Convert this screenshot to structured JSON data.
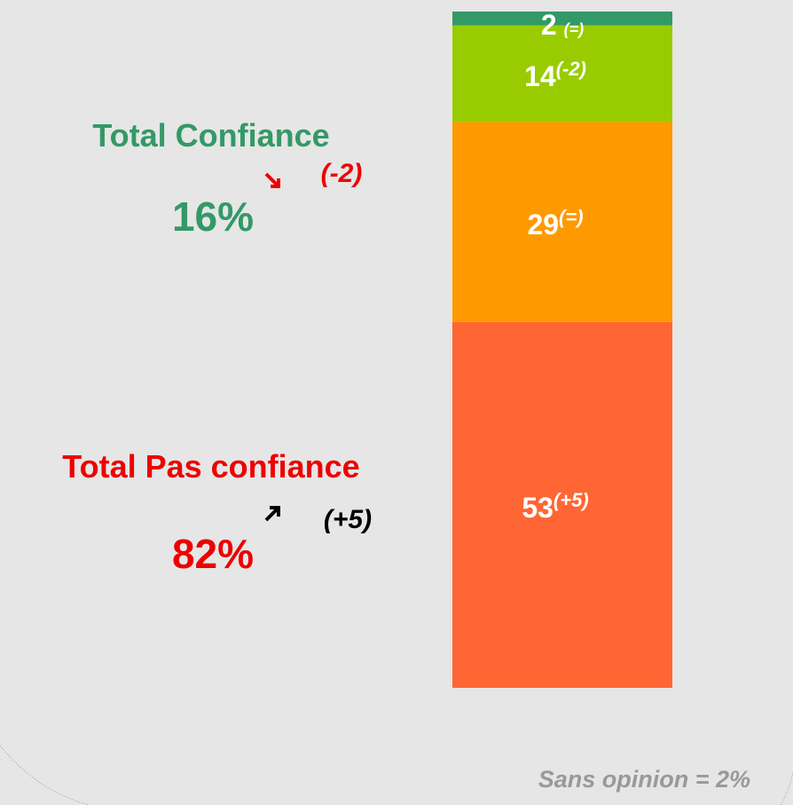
{
  "chart_data": {
    "type": "stacked-bar",
    "series": [
      {
        "color": "#ff6633",
        "values": [
          53
        ],
        "annotation": "(+5)"
      },
      {
        "color": "#ff9900",
        "values": [
          29
        ],
        "annotation": "(=)"
      },
      {
        "color": "#99cc00",
        "values": [
          14
        ],
        "annotation": "(-2)"
      },
      {
        "color": "#339966",
        "values": [
          2
        ],
        "annotation": "(=)"
      }
    ],
    "totals": [
      {
        "label": "Total Confiance",
        "value": 16,
        "value_label": "16%",
        "change": "(-2)",
        "color": "#339966",
        "change_color": "#ee0000"
      },
      {
        "label": "Total Pas confiance",
        "value": 82,
        "value_label": "82%",
        "change": "(+5)",
        "color": "#ee0000",
        "change_color": "#000000"
      }
    ],
    "note": "Sans opinion = 2%"
  }
}
